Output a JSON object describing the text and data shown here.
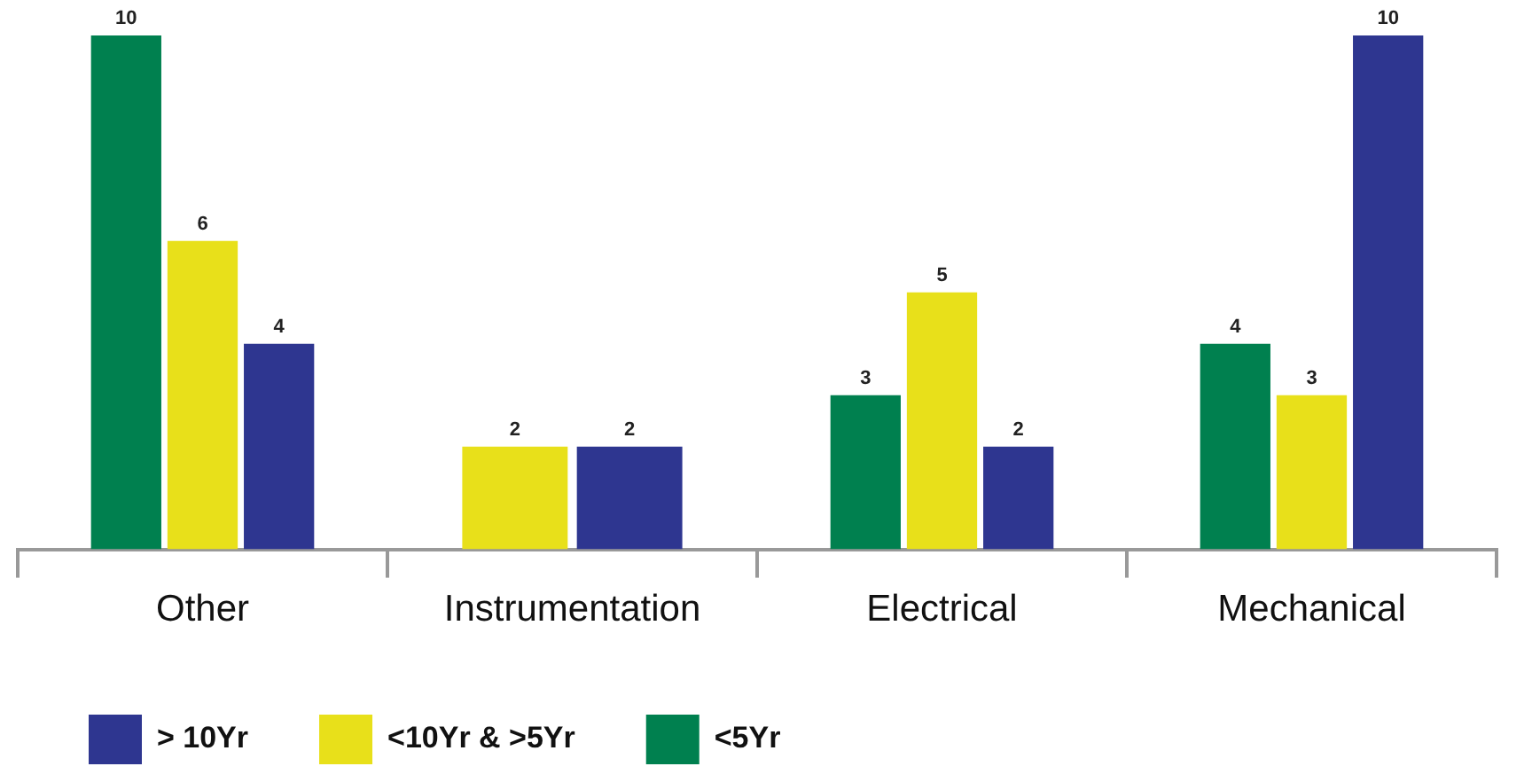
{
  "chart_data": {
    "type": "bar",
    "categories": [
      "Other",
      "Instrumentation",
      "Electrical",
      "Mechanical"
    ],
    "series": [
      {
        "name": "<5Yr",
        "color": "#00804f",
        "values": [
          10,
          null,
          3,
          4
        ]
      },
      {
        "name": "<10Yr & >5Yr",
        "color": "#e8e01a",
        "values": [
          6,
          2,
          5,
          3
        ]
      },
      {
        "name": "> 10Yr",
        "color": "#2e3690",
        "values": [
          4,
          2,
          2,
          10
        ]
      }
    ],
    "data_labels": true,
    "legend": "bottom",
    "grid": false,
    "tick_labels": "x"
  }
}
